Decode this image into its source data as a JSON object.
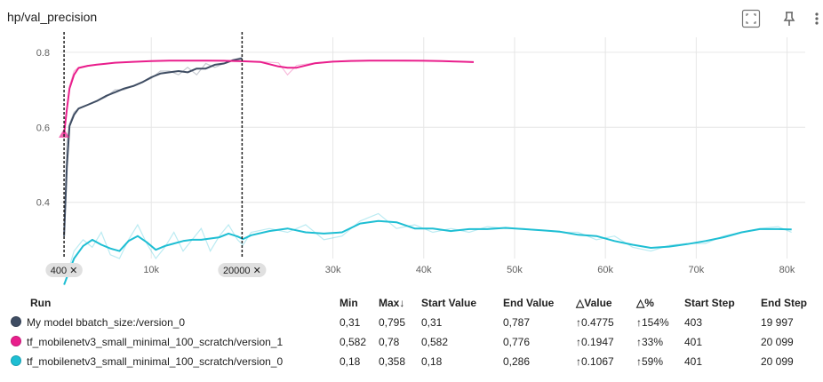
{
  "header": {
    "title": "hp/val_precision"
  },
  "chart_data": {
    "type": "line",
    "xlim": [
      0,
      82000
    ],
    "ylim": [
      0.25,
      0.84
    ],
    "x_ticks": [
      {
        "value": 10000,
        "label": "10k"
      },
      {
        "value": 30000,
        "label": "30k"
      },
      {
        "value": 40000,
        "label": "40k"
      },
      {
        "value": 50000,
        "label": "50k"
      },
      {
        "value": 60000,
        "label": "60k"
      },
      {
        "value": 70000,
        "label": "70k"
      },
      {
        "value": 80000,
        "label": "80k"
      }
    ],
    "y_ticks": [
      {
        "value": 0.4,
        "label": "0.4"
      },
      {
        "value": 0.6,
        "label": "0.6"
      },
      {
        "value": 0.8,
        "label": "0.8"
      }
    ],
    "range_markers": [
      {
        "value": 400,
        "label": "400 ✕"
      },
      {
        "value": 20000,
        "label": "20000 ✕"
      }
    ],
    "grid": true,
    "series": [
      {
        "name": "My model bbatch_size:/version_0",
        "color": "#3f4d63",
        "x": [
          400,
          700,
          1000,
          1500,
          2000,
          3000,
          4000,
          5000,
          6000,
          7000,
          8000,
          9000,
          10000,
          11000,
          12000,
          13000,
          14000,
          15000,
          16000,
          17000,
          18000,
          19000,
          20000
        ],
        "y": [
          0.31,
          0.56,
          0.61,
          0.64,
          0.65,
          0.66,
          0.67,
          0.68,
          0.7,
          0.7,
          0.71,
          0.72,
          0.73,
          0.75,
          0.75,
          0.74,
          0.76,
          0.74,
          0.77,
          0.76,
          0.77,
          0.78,
          0.787
        ]
      },
      {
        "name": "tf_mobilenetv3_small_minimal_100_scratch/version_1",
        "color": "#e91e8c",
        "x": [
          401,
          700,
          1000,
          1500,
          2000,
          3000,
          4000,
          5000,
          6000,
          8000,
          10000,
          12000,
          14000,
          16000,
          18000,
          20000,
          22000,
          24000,
          25000,
          26000,
          28000,
          30000,
          32000,
          34000,
          36000,
          38000,
          40000,
          42000,
          44000,
          45500
        ],
        "y": [
          0.582,
          0.65,
          0.71,
          0.75,
          0.76,
          0.765,
          0.767,
          0.77,
          0.772,
          0.775,
          0.777,
          0.778,
          0.778,
          0.778,
          0.778,
          0.776,
          0.775,
          0.772,
          0.74,
          0.765,
          0.772,
          0.775,
          0.778,
          0.778,
          0.778,
          0.777,
          0.778,
          0.777,
          0.775,
          0.773
        ]
      },
      {
        "name": "tf_mobilenetv3_small_minimal_100_scratch/version_0",
        "color": "#1ebed3",
        "x": [
          401,
          1500,
          2500,
          3500,
          4500,
          5500,
          6500,
          7500,
          8500,
          9500,
          10500,
          11500,
          12500,
          13500,
          14500,
          15500,
          16500,
          17500,
          18500,
          19500,
          20099,
          21000,
          23000,
          25000,
          27000,
          29000,
          31000,
          33000,
          35000,
          37000,
          39000,
          41000,
          43000,
          45000,
          47000,
          49000,
          51000,
          53000,
          55000,
          57000,
          59000,
          61000,
          63000,
          65000,
          67000,
          69000,
          71000,
          73000,
          75000,
          77000,
          79000,
          80500
        ],
        "y": [
          0.18,
          0.27,
          0.3,
          0.28,
          0.32,
          0.26,
          0.25,
          0.3,
          0.34,
          0.29,
          0.25,
          0.28,
          0.32,
          0.27,
          0.3,
          0.33,
          0.27,
          0.31,
          0.34,
          0.3,
          0.286,
          0.32,
          0.33,
          0.32,
          0.34,
          0.3,
          0.31,
          0.35,
          0.37,
          0.33,
          0.34,
          0.32,
          0.33,
          0.32,
          0.335,
          0.33,
          0.33,
          0.325,
          0.32,
          0.32,
          0.3,
          0.31,
          0.28,
          0.27,
          0.285,
          0.29,
          0.29,
          0.31,
          0.32,
          0.33,
          0.335,
          0.32
        ]
      }
    ]
  },
  "table": {
    "headers": {
      "run": "Run",
      "min": "Min",
      "max": "Max",
      "max_sort_icon": "↓",
      "start_value": "Start Value",
      "end_value": "End Value",
      "delta_value": "△Value",
      "delta_pct": "△%",
      "start_step": "Start Step",
      "end_step": "End Step"
    },
    "rows": [
      {
        "color": "#3f4d63",
        "run": "My model bbatch_size:/version_0",
        "min": "0,31",
        "max": "0,795",
        "start_value": "0,31",
        "end_value": "0,787",
        "delta_value": "↑0.4775",
        "delta_pct": "↑154%",
        "start_step": "403",
        "end_step": "19 997"
      },
      {
        "color": "#e91e8c",
        "run": "tf_mobilenetv3_small_minimal_100_scratch/version_1",
        "min": "0,582",
        "max": "0,78",
        "start_value": "0,582",
        "end_value": "0,776",
        "delta_value": "↑0.1947",
        "delta_pct": "↑33%",
        "start_step": "401",
        "end_step": "20 099"
      },
      {
        "color": "#1ebed3",
        "run": "tf_mobilenetv3_small_minimal_100_scratch/version_0",
        "min": "0,18",
        "max": "0,358",
        "start_value": "0,18",
        "end_value": "0,286",
        "delta_value": "↑0.1067",
        "delta_pct": "↑59%",
        "start_step": "401",
        "end_step": "20 099"
      }
    ]
  }
}
